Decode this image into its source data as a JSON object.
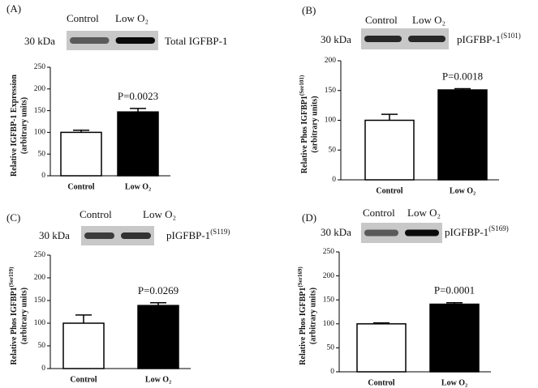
{
  "chart_data": [
    {
      "type": "bar",
      "panel": "(A)",
      "blot": {
        "lanes": [
          "Control",
          "Low O₂"
        ],
        "marker": "30 kDa",
        "label": "Total IGFBP-1"
      },
      "y_label": {
        "text": "Relative IGFBP-1 Expression",
        "subtitle": "(arbitrary units)"
      },
      "categories": [
        "Control",
        "Low O₂"
      ],
      "values": [
        100,
        147
      ],
      "errors": [
        5,
        8
      ],
      "colors": [
        "#ffffff",
        "#000000"
      ],
      "annotation": "P=0.0023",
      "ylim": [
        0,
        250
      ],
      "yticks": [
        0,
        50,
        100,
        150,
        200,
        250
      ]
    },
    {
      "type": "bar",
      "panel": "(B)",
      "blot": {
        "lanes": [
          "Control",
          "Low O₂"
        ],
        "marker": "30 kDa",
        "label": "pIGFBP-1",
        "label_superscript": "(S101)"
      },
      "y_label": {
        "text": "Relative Phos IGFBP1",
        "superscript": "(Ser101)",
        "subtitle": "(arbitrary units)"
      },
      "categories": [
        "Control",
        "Low O₂"
      ],
      "values": [
        100,
        151
      ],
      "errors": [
        10,
        2
      ],
      "colors": [
        "#ffffff",
        "#000000"
      ],
      "annotation": "P=0.0018",
      "ylim": [
        0,
        200
      ],
      "yticks": [
        0,
        50,
        100,
        150,
        200
      ]
    },
    {
      "type": "bar",
      "panel": "(C)",
      "blot": {
        "lanes": [
          "Control",
          "Low O₂"
        ],
        "marker": "30 kDa",
        "label": "pIGFBP-1",
        "label_superscript": "(S119)"
      },
      "y_label": {
        "text": "Relative Phos IGFBP1",
        "superscript": "(Ser119)",
        "subtitle": "(arbitrary units)"
      },
      "categories": [
        "Control",
        "Low O₂"
      ],
      "values": [
        100,
        139
      ],
      "errors": [
        18,
        6
      ],
      "colors": [
        "#ffffff",
        "#000000"
      ],
      "annotation": "P=0.0269",
      "ylim": [
        0,
        250
      ],
      "yticks": [
        0,
        50,
        100,
        150,
        200,
        250
      ]
    },
    {
      "type": "bar",
      "panel": "(D)",
      "blot": {
        "lanes": [
          "Control",
          "Low O₂"
        ],
        "marker": "30 kDa",
        "label": "pIGFBP-1",
        "label_superscript": "(S169)"
      },
      "y_label": {
        "text": "Relative Phos IGFBP1",
        "superscript": "(Ser169)",
        "subtitle": "(arbitrary units)"
      },
      "categories": [
        "Control",
        "Low O₂"
      ],
      "values": [
        100,
        141
      ],
      "errors": [
        2,
        3
      ],
      "colors": [
        "#ffffff",
        "#000000"
      ],
      "annotation": "P=0.0001",
      "ylim": [
        0,
        250
      ],
      "yticks": [
        0,
        50,
        100,
        150,
        200,
        250
      ]
    }
  ]
}
